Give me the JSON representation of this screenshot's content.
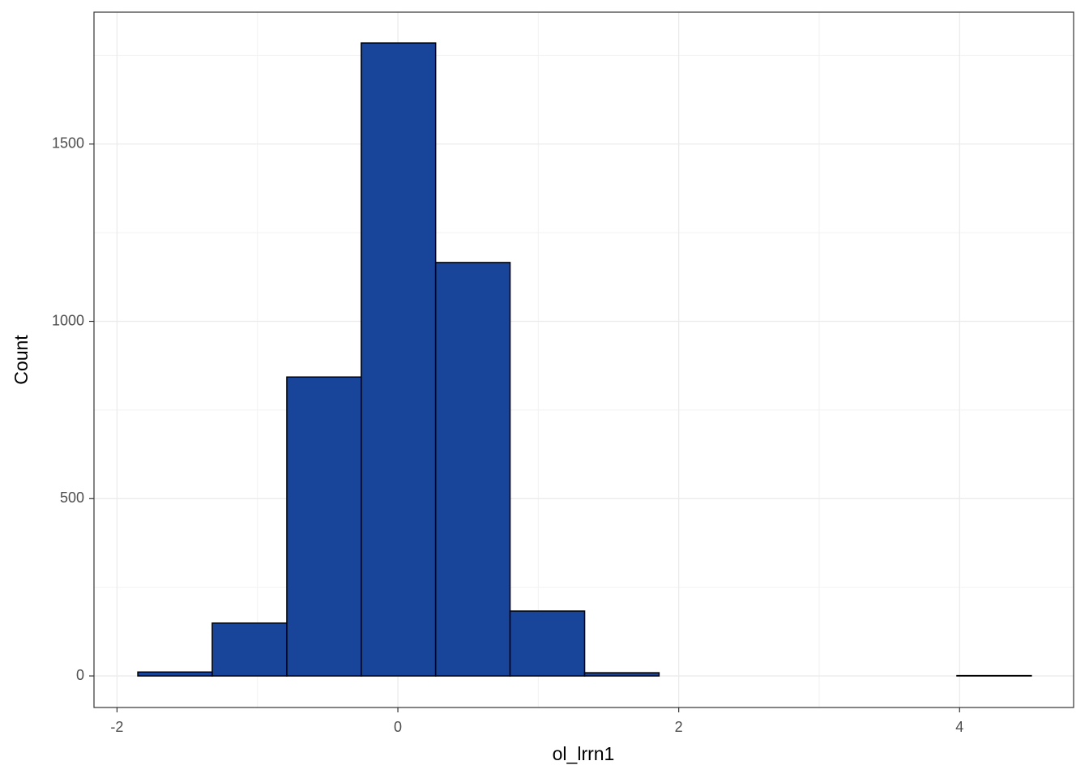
{
  "chart_data": {
    "type": "histogram",
    "x_label": "ol_lrrn1",
    "y_label": "Count",
    "bins": [
      -1.852,
      -1.322,
      -0.791,
      -0.261,
      0.269,
      0.799,
      1.33,
      1.86,
      2.39,
      2.92,
      3.451,
      3.981,
      4.511
    ],
    "values": [
      11,
      149,
      843,
      1785,
      1166,
      183,
      9,
      0,
      0,
      0,
      0,
      1
    ],
    "color": "#18449a",
    "xlim": [
      -2.164,
      4.812
    ],
    "xticks": [
      -2,
      0,
      2,
      4
    ],
    "ylim": [
      -89,
      1872
    ],
    "yticks": [
      0,
      500,
      1000,
      1500
    ],
    "grid": true
  }
}
